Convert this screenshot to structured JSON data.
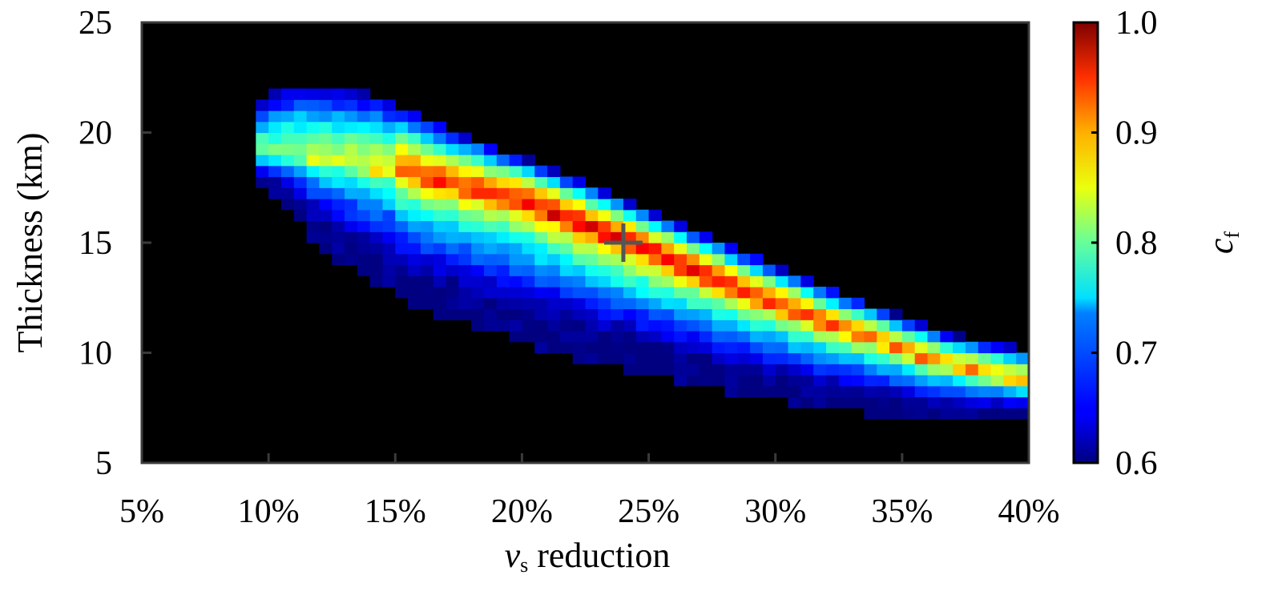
{
  "chart_data": {
    "type": "heatmap",
    "title": "",
    "xlabel_var": "v",
    "xlabel_sub": "s",
    "xlabel_rest": " reduction",
    "ylabel": "Thickness (km)",
    "colorbar_label_var": "c",
    "colorbar_label_sub": "f",
    "xlim": [
      5,
      40
    ],
    "ylim": [
      5,
      25
    ],
    "x_ticks": [
      5,
      10,
      15,
      20,
      25,
      30,
      35,
      40
    ],
    "x_tick_labels": [
      "5%",
      "10%",
      "15%",
      "20%",
      "25%",
      "30%",
      "35%",
      "40%"
    ],
    "y_ticks": [
      5,
      10,
      15,
      20,
      25
    ],
    "y_tick_labels": [
      "5",
      "10",
      "15",
      "20",
      "25"
    ],
    "colorbar_ticks": [
      0.6,
      0.7,
      0.8,
      0.9,
      1.0
    ],
    "colorbar_tick_labels": [
      "0.6",
      "0.7",
      "0.8",
      "0.9",
      "1.0"
    ],
    "color_range": [
      0.6,
      1.0
    ],
    "colormap": "jet",
    "background_color": "#000000",
    "cell_size": {
      "dx": 0.5,
      "dy": 0.5
    },
    "ridge": [
      [
        10.5,
        19.0
      ],
      [
        15.5,
        18.0
      ],
      [
        18,
        17.3
      ],
      [
        20,
        16.8
      ],
      [
        22,
        15.9
      ],
      [
        24,
        15.0
      ],
      [
        26,
        14.0
      ],
      [
        28,
        13.0
      ],
      [
        30,
        12.1
      ],
      [
        32,
        11.2
      ],
      [
        34,
        10.5
      ],
      [
        36,
        9.6
      ],
      [
        40,
        8.6
      ]
    ],
    "lower_edge": [
      [
        9.3,
        18.0
      ],
      [
        10,
        17.4
      ],
      [
        11,
        16.3
      ],
      [
        12,
        14.8
      ],
      [
        14,
        13.3
      ],
      [
        16,
        12.0
      ],
      [
        18,
        11.2
      ],
      [
        20,
        10.5
      ],
      [
        22,
        9.8
      ],
      [
        24,
        9.3
      ],
      [
        26,
        8.8
      ],
      [
        28,
        8.3
      ],
      [
        30,
        7.9
      ],
      [
        32,
        7.5
      ],
      [
        34,
        7.2
      ],
      [
        36,
        7.0
      ],
      [
        40,
        7.0
      ]
    ],
    "upper_edge": [
      [
        9.3,
        21.0
      ],
      [
        10,
        21.7
      ],
      [
        11,
        22.1
      ],
      [
        12,
        22.2
      ],
      [
        14,
        21.8
      ],
      [
        16,
        20.8
      ],
      [
        18,
        19.8
      ],
      [
        20,
        18.9
      ],
      [
        22,
        18.0
      ],
      [
        24,
        17.0
      ],
      [
        26,
        16.0
      ],
      [
        28,
        15.0
      ],
      [
        30,
        14.0
      ],
      [
        32,
        13.0
      ],
      [
        34,
        12.1
      ],
      [
        36,
        11.2
      ],
      [
        38,
        10.5
      ],
      [
        40,
        10.2
      ]
    ],
    "peak_value": 1.0,
    "best_fit_marker": {
      "x": 24,
      "y": 15,
      "symbol": "+",
      "color": "#555555"
    }
  }
}
